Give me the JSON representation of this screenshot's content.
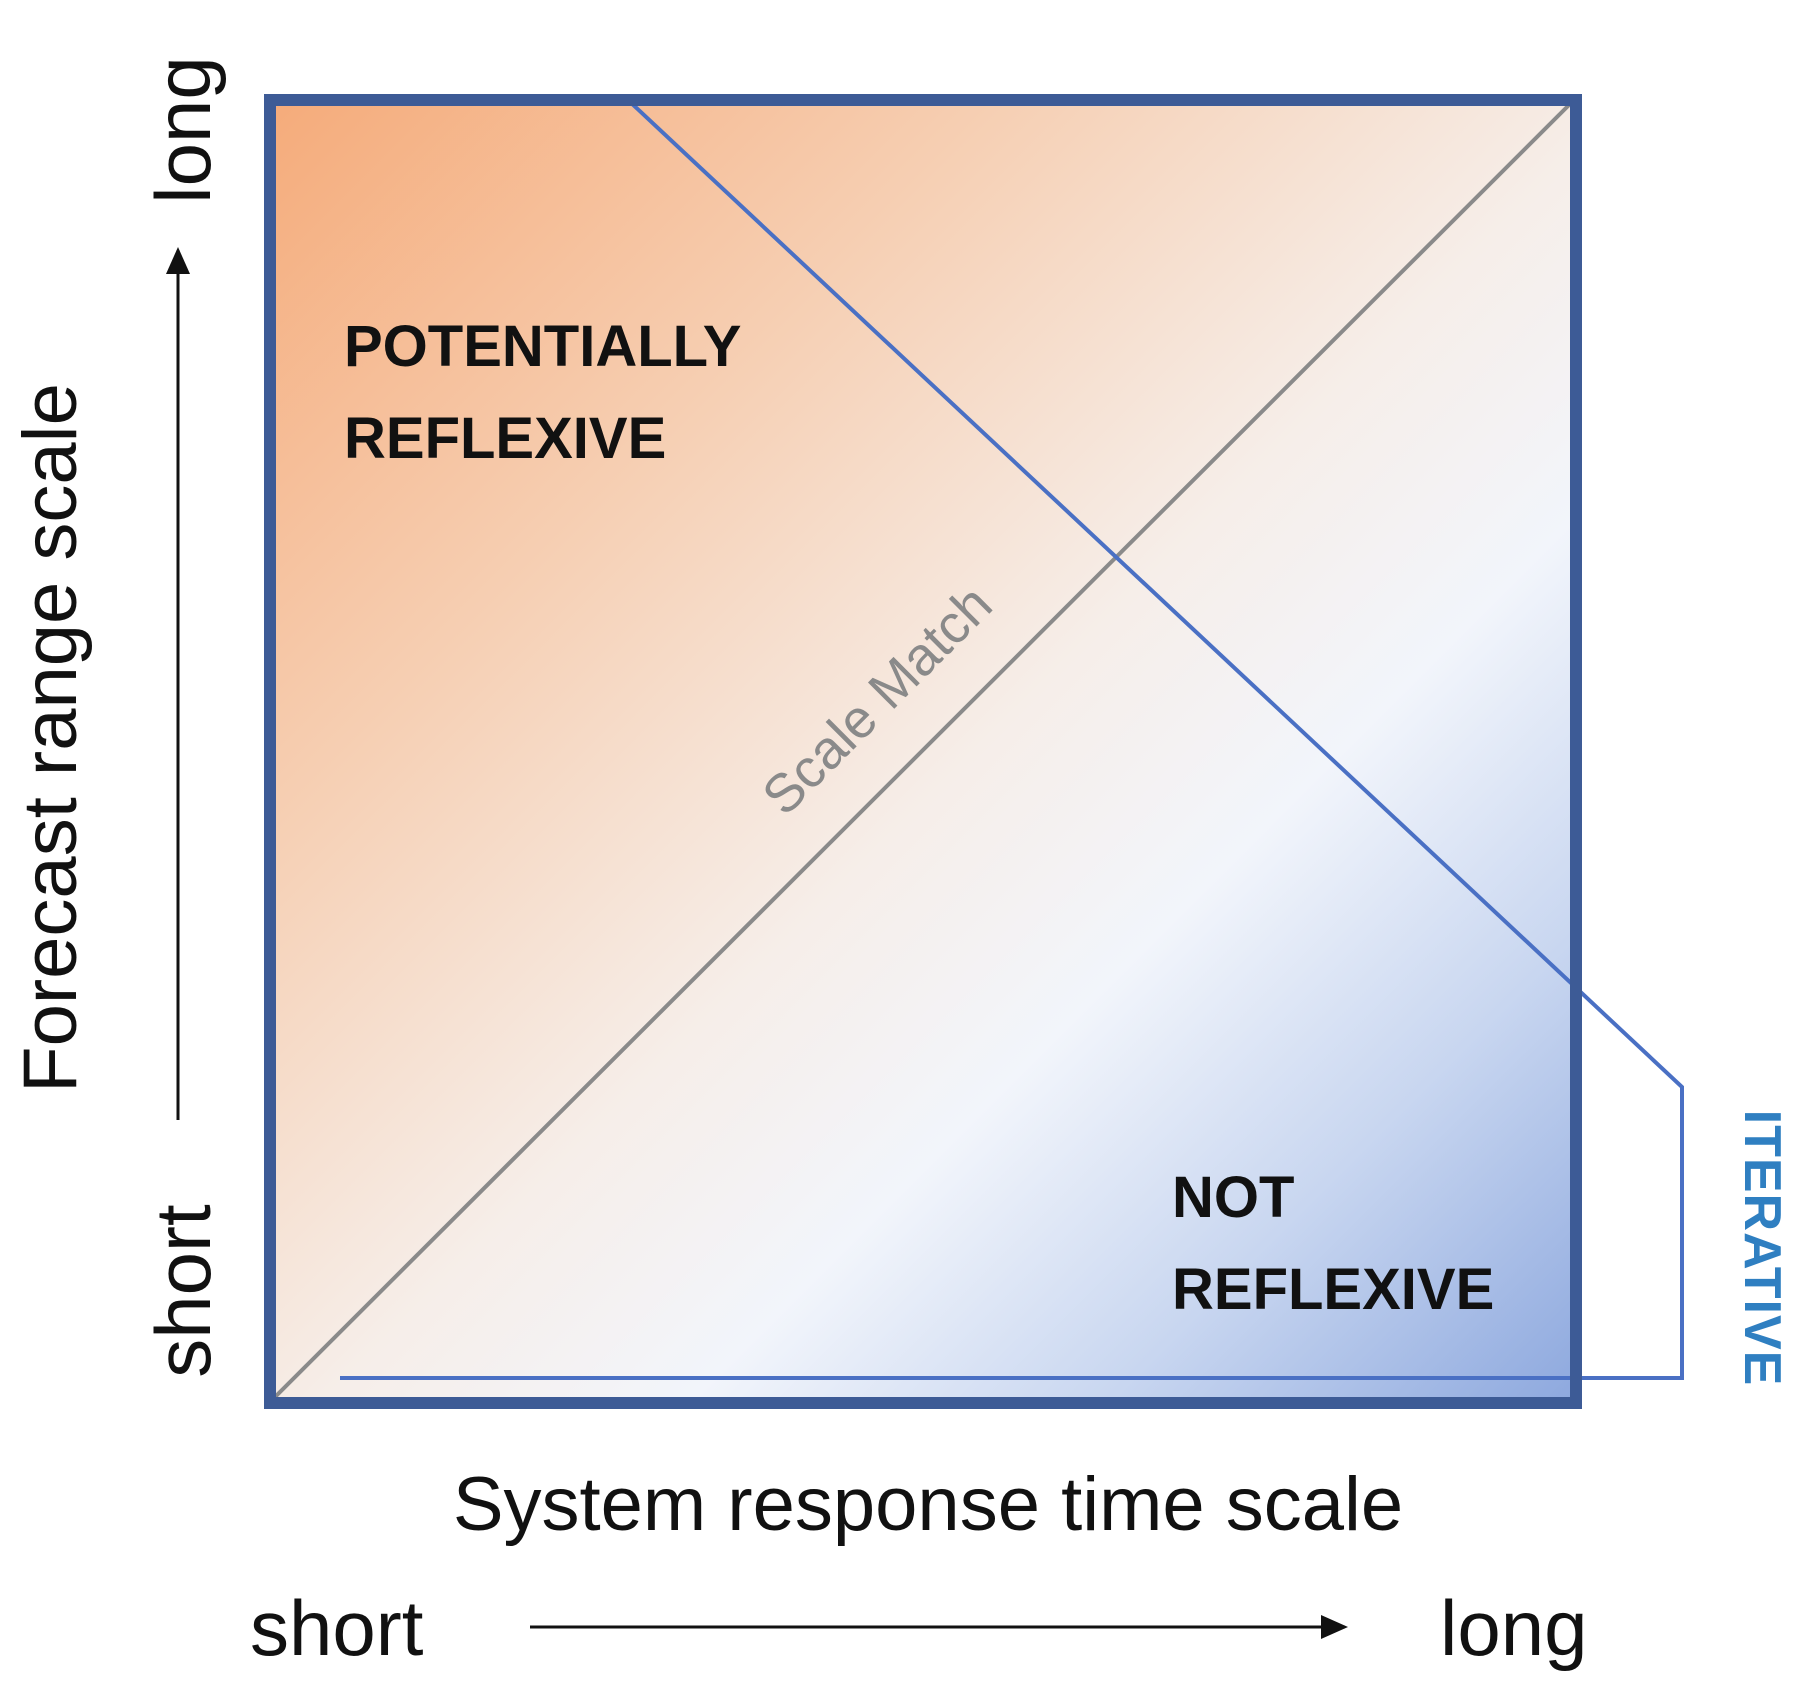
{
  "axes": {
    "y_title": "Forecast range scale",
    "y_low": "short",
    "y_high": "long",
    "x_title": "System response time scale",
    "x_low": "short",
    "x_high": "long"
  },
  "regions": {
    "upper_left": [
      "POTENTIALLY",
      "REFLEXIVE"
    ],
    "lower_right": [
      "NOT",
      "REFLEXIVE"
    ]
  },
  "diagonal_label": "Scale Match",
  "boundary_label": "ITERATIVE",
  "colors": {
    "frame": "#3d5b96",
    "warm": "#f5ac7d",
    "cool": "#8eaadf",
    "diagonal": "#8a8a8a",
    "boundary": "#4a70c4",
    "iterative_text": "#2f7fc1"
  }
}
